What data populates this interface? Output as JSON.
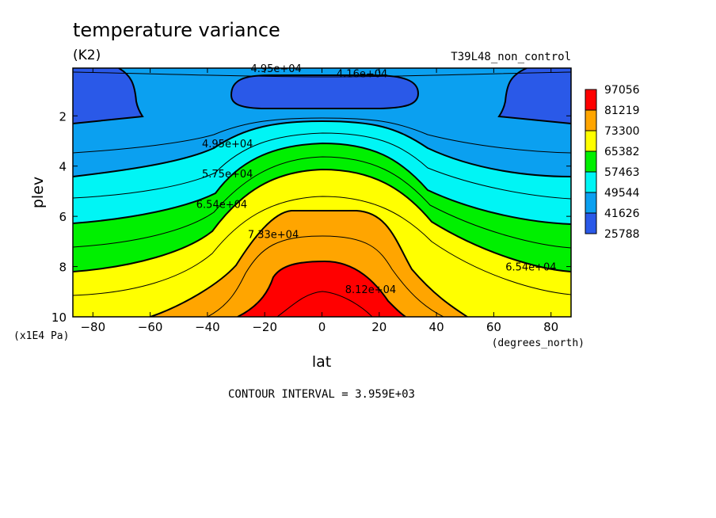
{
  "chart_data": {
    "type": "heatmap",
    "title": "temperature variance",
    "units": "(K2)",
    "dataset": "T39L48_non_control",
    "xlabel": "lat",
    "ylabel": "plev",
    "x_unit": "(degrees_north)",
    "y_unit": "(x1E4 Pa)",
    "xlim": [
      -87,
      87
    ],
    "ylim": [
      0.1,
      10
    ],
    "y_inverted": true,
    "x_ticks": [
      -80,
      -60,
      -40,
      -20,
      0,
      20,
      40,
      60,
      80
    ],
    "y_ticks": [
      2,
      4,
      6,
      8,
      10
    ],
    "contour_interval": "CONTOUR INTERVAL = 3.959E+03",
    "legend": {
      "position": "right",
      "levels": [
        97056,
        81219,
        73300,
        65382,
        57463,
        49544,
        41626,
        25788
      ]
    },
    "fill_colors": {
      "band0": "#2a59e8",
      "band1": "#0ba0f0",
      "band2": "#00f5f5",
      "band3": "#00f000",
      "band4": "#ffff00",
      "band5": "#ffa500",
      "band6": "#ff0000"
    },
    "contour_labels": [
      {
        "text": "4.95e+04",
        "lat": -16,
        "plev": 0.1
      },
      {
        "text": "4.16e+04",
        "lat": 14,
        "plev": 0.3
      },
      {
        "text": "4.95e+04",
        "lat": -33,
        "plev": 3.1
      },
      {
        "text": "5.75e+04",
        "lat": -33,
        "plev": 4.3
      },
      {
        "text": "6.54e+04",
        "lat": -35,
        "plev": 5.5
      },
      {
        "text": "7.33e+04",
        "lat": -17,
        "plev": 6.7
      },
      {
        "text": "8.12e+04",
        "lat": 17,
        "plev": 8.9
      },
      {
        "text": "6.54e+04",
        "lat": 73,
        "plev": 8.0
      }
    ]
  }
}
